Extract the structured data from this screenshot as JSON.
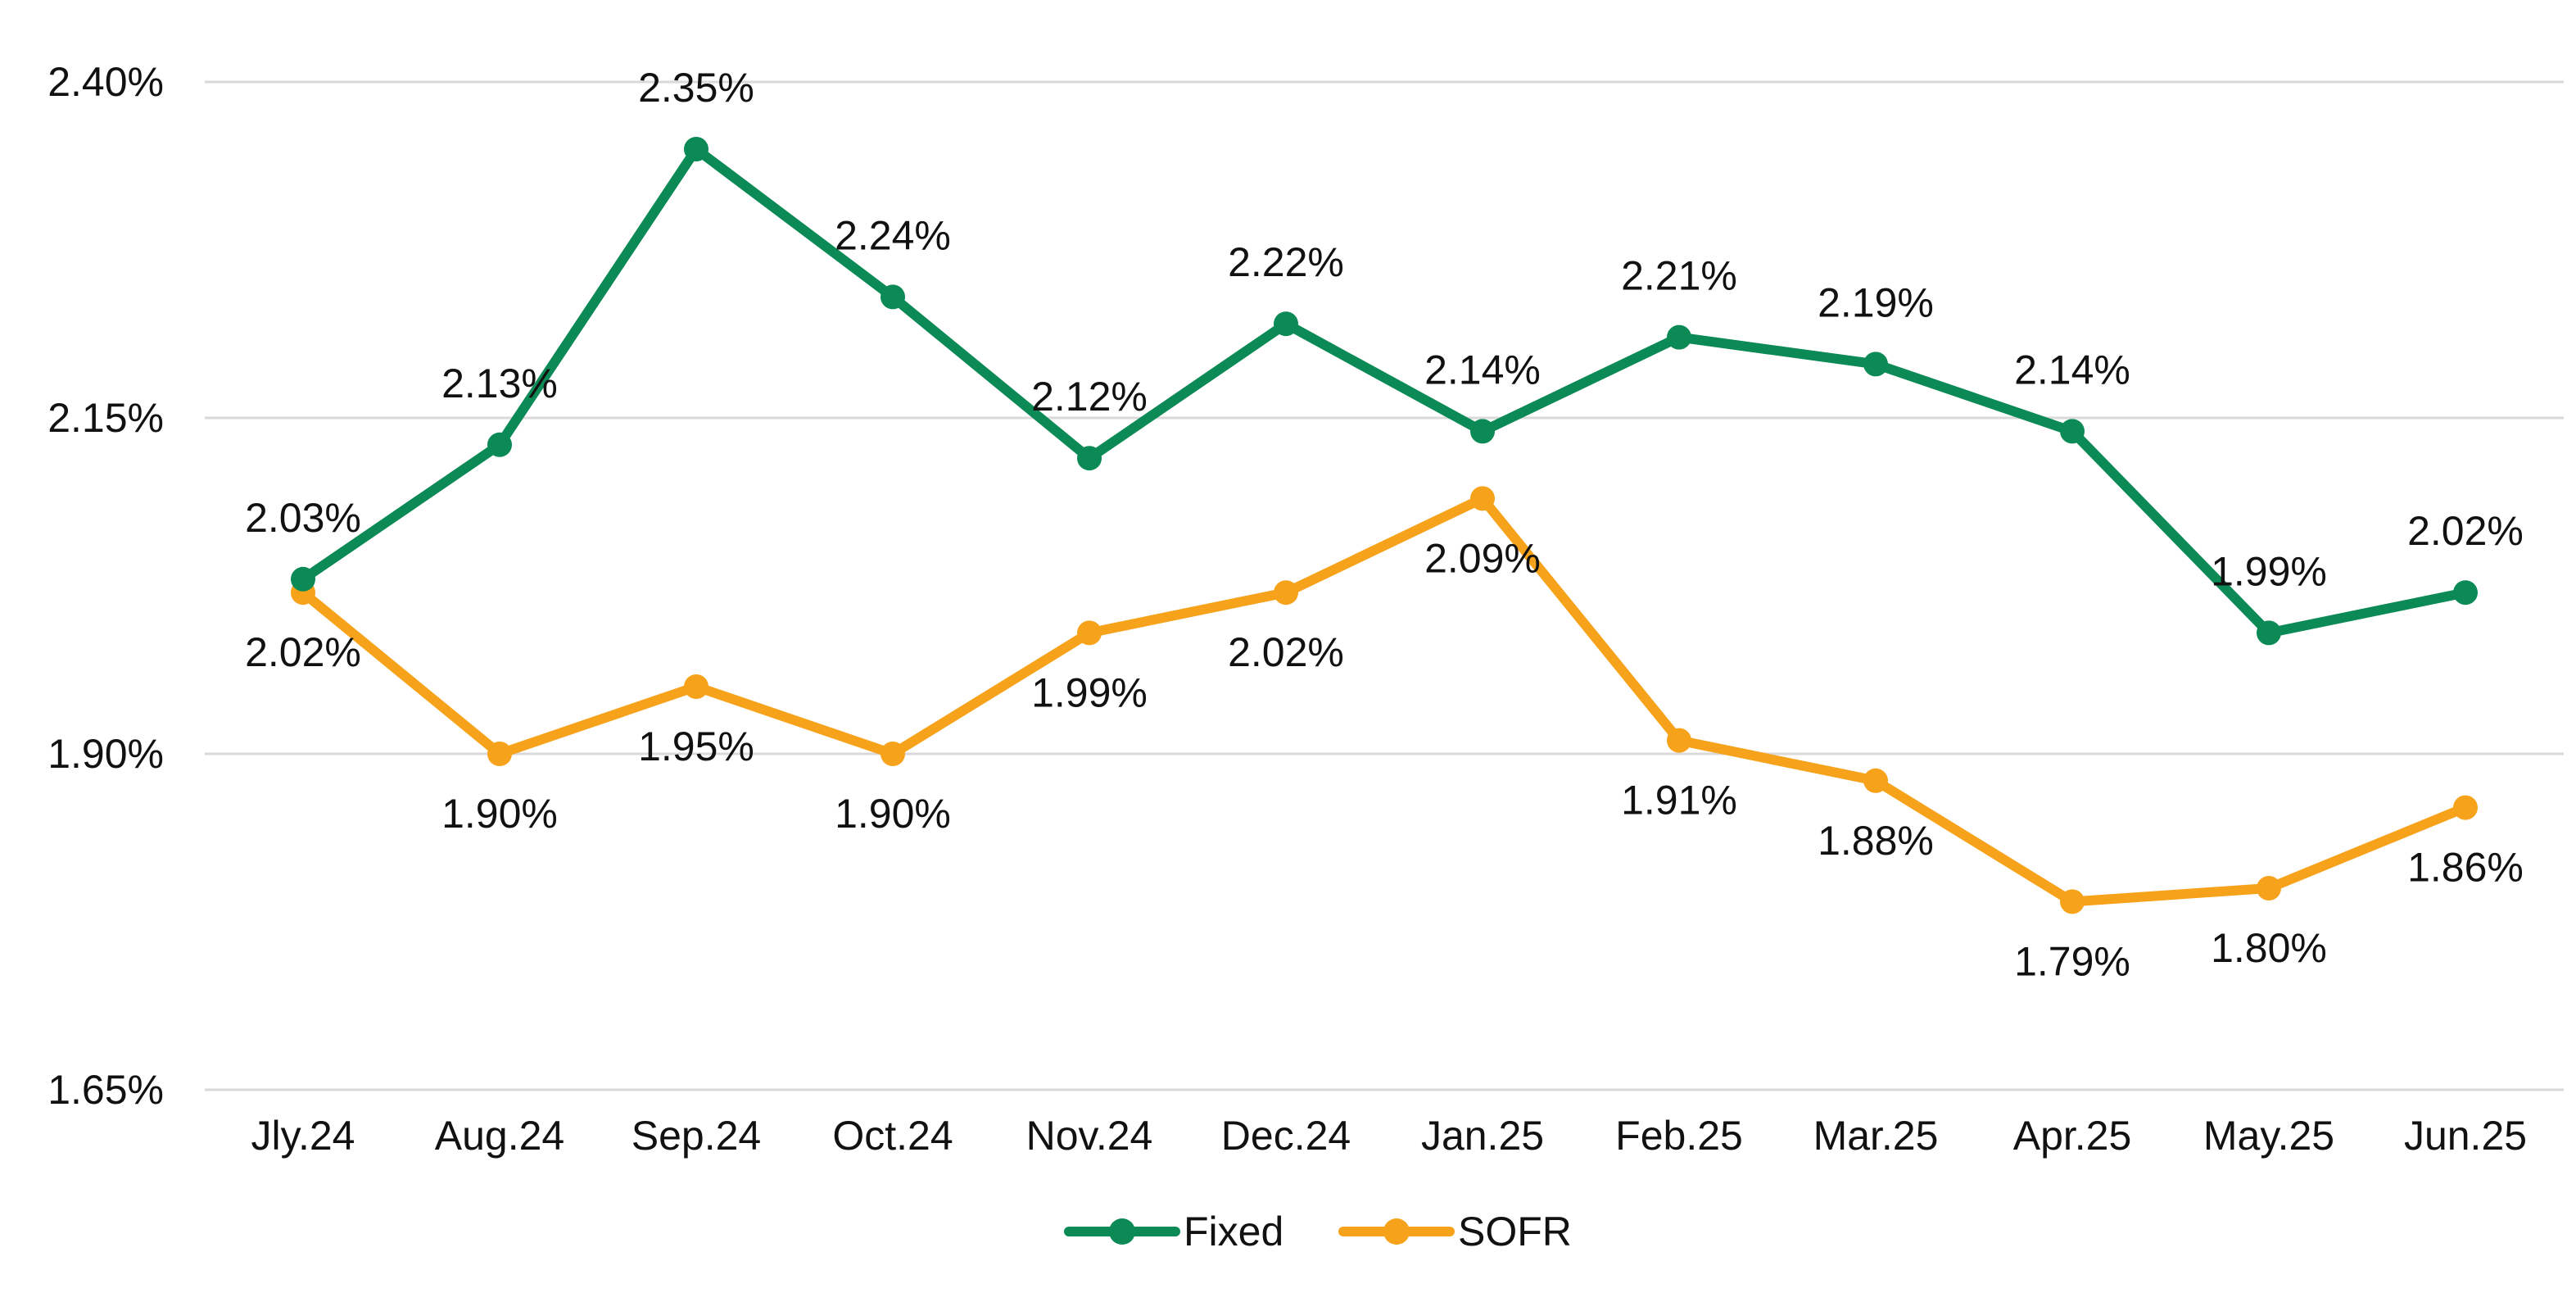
{
  "chart_data": {
    "type": "line",
    "categories": [
      "Jly.24",
      "Aug.24",
      "Sep.24",
      "Oct.24",
      "Nov.24",
      "Dec.24",
      "Jan.25",
      "Feb.25",
      "Mar.25",
      "Apr.25",
      "May.25",
      "Jun.25"
    ],
    "series": [
      {
        "name": "Fixed",
        "color": "#0b8a55",
        "values": [
          2.03,
          2.13,
          2.35,
          2.24,
          2.12,
          2.22,
          2.14,
          2.21,
          2.19,
          2.14,
          1.99,
          2.02
        ],
        "labels": [
          "2.03%",
          "2.13%",
          "2.35%",
          "2.24%",
          "2.12%",
          "2.22%",
          "2.14%",
          "2.21%",
          "2.19%",
          "2.14%",
          "1.99%",
          "2.02%"
        ]
      },
      {
        "name": "SOFR",
        "color": "#f7a21b",
        "values": [
          2.02,
          1.9,
          1.95,
          1.9,
          1.99,
          2.02,
          2.09,
          1.91,
          1.88,
          1.79,
          1.8,
          1.86
        ],
        "labels": [
          "2.02%",
          "1.90%",
          "1.95%",
          "1.90%",
          "1.99%",
          "2.02%",
          "2.09%",
          "1.91%",
          "1.88%",
          "1.79%",
          "1.80%",
          "1.86%"
        ]
      }
    ],
    "ylim": [
      1.65,
      2.4
    ],
    "yticks": [
      1.65,
      1.9,
      2.15,
      2.4
    ],
    "ytick_labels": [
      "1.65%",
      "1.90%",
      "2.15%",
      "2.40%"
    ],
    "grid": true,
    "legend": "bottom",
    "title": "",
    "xlabel": "",
    "ylabel": ""
  }
}
